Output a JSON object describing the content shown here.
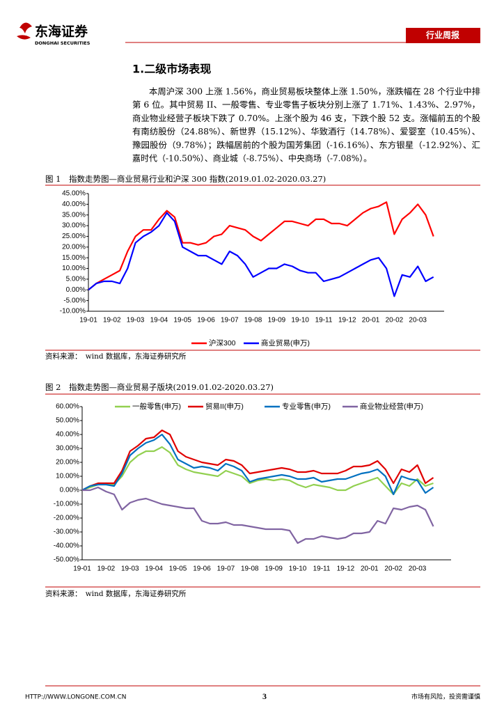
{
  "header": {
    "logo": "东海证券",
    "logo_en": "DONGHAI SECURITIES",
    "tag": "行业周报"
  },
  "section_title": "1.二级市场表现",
  "paragraph": [
    "本周沪深 300 上涨 1.56%，商业贸易板块整体上涨 1.50%，涨跌幅在 28 个行业中排",
    "第 6 位。其中贸易 II、一般零售、专业零售子板块分别上涨了 1.71%、1.43%、2.97%，",
    "商业物业经营子板块下跌了 0.70%。上涨个股为 46 支，下跌个股 52 支。涨幅前五的个股",
    "有南纺股份（24.88%）、新世界（15.12%）、华致酒行（14.78%）、爱婴室（10.45%）、",
    "豫园股份（9.78%）；跌幅居前的个股为国芳集团（-16.16%）、东方银星（-12.92%）、汇",
    "嘉时代（-10.50%）、商业城（-8.75%）、中央商场（-7.08%）。"
  ],
  "chart_data": [
    {
      "type": "line",
      "caption": "图 1　指数走势图—商业贸易行业和沪深 300 指数(2019.01.02-2020.03.27)",
      "source": "资料来源：　wind 数据库，东海证券研究所",
      "legend": "bottom",
      "categories": [
        "19-01",
        null,
        null,
        "19-02",
        null,
        null,
        "19-03",
        null,
        null,
        "19-04",
        null,
        null,
        "19-05",
        null,
        null,
        "19-06",
        null,
        null,
        "19-07",
        null,
        null,
        "19-08",
        null,
        null,
        "19-09",
        null,
        null,
        "19-10",
        null,
        null,
        "19-11",
        null,
        null,
        "19-12",
        null,
        null,
        "20-01",
        null,
        null,
        "20-02",
        null,
        null,
        "20-03",
        null,
        null
      ],
      "ylim": [
        -10,
        45
      ],
      "yticks": [
        {
          "value": -10,
          "label": "-10.00%"
        },
        {
          "value": -5,
          "label": "-5.00%"
        },
        {
          "value": 0,
          "label": "0.00%"
        },
        {
          "value": 5,
          "label": "5.00%"
        },
        {
          "value": 10,
          "label": "10.00%"
        },
        {
          "value": 15,
          "label": "15.00%"
        },
        {
          "value": 20,
          "label": "20.00%"
        },
        {
          "value": 25,
          "label": "25.00%"
        },
        {
          "value": 30,
          "label": "30.00%"
        },
        {
          "value": 35,
          "label": "35.00%"
        },
        {
          "value": 40,
          "label": "40.00%"
        },
        {
          "value": 45,
          "label": "45.00%"
        }
      ],
      "series": [
        {
          "name": "沪深300",
          "color": "#ff0000",
          "values": [
            0,
            3,
            5,
            7,
            9,
            18,
            25,
            28,
            28,
            33,
            37,
            34,
            22,
            22,
            21,
            22,
            25,
            26,
            30,
            29,
            28,
            25,
            23,
            26,
            29,
            32,
            32,
            31,
            30,
            33,
            33,
            31,
            31,
            30,
            33,
            36,
            38,
            39,
            41,
            26,
            33,
            36,
            40,
            35,
            25
          ]
        },
        {
          "name": "商业贸易(申万)",
          "color": "#0000ff",
          "values": [
            0,
            3,
            4,
            4,
            3,
            10,
            22,
            25,
            27,
            30,
            36,
            32,
            20,
            18,
            16,
            16,
            14,
            12,
            18,
            16,
            12,
            6,
            8,
            10,
            10,
            12,
            11,
            9,
            8,
            8,
            4,
            5,
            6,
            8,
            10,
            12,
            14,
            15,
            10,
            -3,
            7,
            6,
            11,
            4,
            6
          ]
        }
      ]
    },
    {
      "type": "line",
      "caption": "图 2　指数走势图—商业贸易子版块(2019.01.02-2020.03.27)",
      "source": "资料来源：　wind 数据库，东海证券研究所",
      "legend": "top",
      "categories": [
        "19-01",
        null,
        null,
        "19-02",
        null,
        null,
        "19-03",
        null,
        null,
        "19-04",
        null,
        null,
        "19-05",
        null,
        null,
        "19-06",
        null,
        null,
        "19-07",
        null,
        null,
        "19-08",
        null,
        null,
        "19-09",
        null,
        null,
        "19-10",
        null,
        null,
        "19-11",
        null,
        null,
        "19-12",
        null,
        null,
        "20-01",
        null,
        null,
        "20-02",
        null,
        null,
        "20-03",
        null,
        null
      ],
      "ylim": [
        -50,
        60
      ],
      "yticks": [
        {
          "value": -50,
          "label": "-50.00%"
        },
        {
          "value": -40,
          "label": "-40.00%"
        },
        {
          "value": -30,
          "label": "-30.00%"
        },
        {
          "value": -20,
          "label": "-20.00%"
        },
        {
          "value": -10,
          "label": "-10.00%"
        },
        {
          "value": 0,
          "label": "0.00%"
        },
        {
          "value": 10,
          "label": "10.00%"
        },
        {
          "value": 20,
          "label": "20.00%"
        },
        {
          "value": 30,
          "label": "30.00%"
        },
        {
          "value": 40,
          "label": "40.00%"
        },
        {
          "value": 50,
          "label": "50.00%"
        },
        {
          "value": 60,
          "label": "60.00%"
        }
      ],
      "series": [
        {
          "name": "一般零售(申万)",
          "color": "#92d050",
          "values": [
            0,
            2,
            4,
            5,
            4,
            10,
            20,
            25,
            28,
            28,
            31,
            27,
            18,
            15,
            13,
            12,
            11,
            10,
            14,
            12,
            10,
            5,
            7,
            8,
            7,
            8,
            7,
            4,
            2,
            4,
            3,
            2,
            0,
            0,
            3,
            5,
            7,
            9,
            3,
            -3,
            5,
            3,
            8,
            3,
            5
          ]
        },
        {
          "name": "贸易II(申万)",
          "color": "#e00000",
          "values": [
            0,
            3,
            5,
            5,
            5,
            14,
            28,
            32,
            37,
            38,
            43,
            40,
            28,
            24,
            22,
            20,
            19,
            18,
            22,
            21,
            18,
            12,
            13,
            14,
            15,
            16,
            15,
            13,
            13,
            14,
            12,
            12,
            12,
            14,
            17,
            17,
            18,
            21,
            15,
            5,
            15,
            13,
            18,
            5,
            9
          ]
        },
        {
          "name": "专业零售(申万)",
          "color": "#0070c0",
          "values": [
            0,
            3,
            4,
            4,
            3,
            12,
            25,
            30,
            34,
            36,
            40,
            33,
            22,
            19,
            16,
            17,
            16,
            14,
            19,
            17,
            14,
            6,
            8,
            9,
            10,
            11,
            10,
            8,
            8,
            9,
            6,
            7,
            8,
            8,
            10,
            12,
            13,
            15,
            10,
            -3,
            10,
            8,
            7,
            -2,
            2
          ]
        },
        {
          "name": "商业物业经营(申万)",
          "color": "#8064a2",
          "values": [
            0,
            0,
            2,
            -1,
            -3,
            -14,
            -9,
            -7,
            -6,
            -8,
            -10,
            -11,
            -12,
            -13,
            -13,
            -22,
            -24,
            -24,
            -23,
            -25,
            -25,
            -26,
            -27,
            -28,
            -28,
            -28,
            -29,
            -38,
            -35,
            -35,
            -33,
            -34,
            -35,
            -34,
            -31,
            -31,
            -30,
            -22,
            -24,
            -13,
            -14,
            -12,
            -11,
            -14,
            -26
          ]
        }
      ]
    }
  ],
  "footer": {
    "url": "HTTP://WWW.LONGONE.COM.CN",
    "page": "3",
    "note": "市场有风险，投资需谨慎"
  }
}
